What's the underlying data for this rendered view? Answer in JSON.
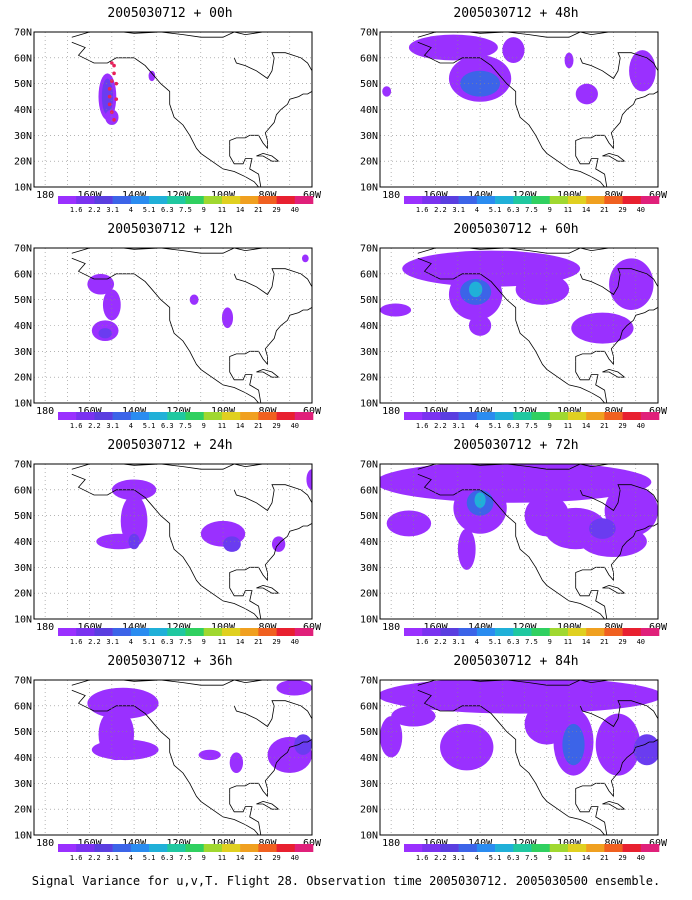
{
  "figure": {
    "footer": "Signal Variance for u,v,T. Flight 28. Observation time 2005030712. 2005030500 ensemble."
  },
  "colorbar": {
    "labels": [
      "1.6",
      "2.2",
      "3.1",
      "4",
      "5.1",
      "6.3",
      "7.5",
      "9",
      "11",
      "14",
      "21",
      "29",
      "40"
    ],
    "colors": [
      "#9a30ff",
      "#7a32f0",
      "#5a3ee0",
      "#3c64e8",
      "#2a8cf0",
      "#20b0d8",
      "#20c8a0",
      "#30d060",
      "#a0d830",
      "#e0d020",
      "#f0a020",
      "#f06020",
      "#e82030",
      "#e0207a"
    ]
  },
  "chart_data": [
    {
      "type": "heatmap",
      "title": "2005030712 + 00h",
      "ylabels": [
        "70N",
        "60N",
        "50N",
        "40N",
        "30N",
        "20N",
        "10N"
      ],
      "xlabels": [
        "180",
        "160W",
        "140W",
        "120W",
        "100W",
        "80W",
        "60W"
      ],
      "lon_range": [
        -185,
        -60
      ],
      "lat_range": [
        10,
        70
      ],
      "grid": true,
      "blobs": [
        {
          "lon": -152,
          "lat": 45,
          "rx": 4,
          "ry": 9,
          "level": 1
        },
        {
          "lon": -152,
          "lat": 45,
          "rx": 2.5,
          "ry": 7,
          "level": 2
        },
        {
          "lon": -150,
          "lat": 37,
          "rx": 3,
          "ry": 3,
          "level": 1
        },
        {
          "lon": -132,
          "lat": 53,
          "rx": 1.5,
          "ry": 2,
          "level": 1
        }
      ],
      "flight_points": [
        {
          "lon": -149,
          "lat": 57
        },
        {
          "lon": -149,
          "lat": 54
        },
        {
          "lon": -150,
          "lat": 51
        },
        {
          "lon": -151,
          "lat": 48
        },
        {
          "lon": -151,
          "lat": 45
        },
        {
          "lon": -151,
          "lat": 42
        },
        {
          "lon": -150,
          "lat": 39
        },
        {
          "lon": -149,
          "lat": 36
        },
        {
          "lon": -150,
          "lat": 58
        },
        {
          "lon": -148,
          "lat": 50
        },
        {
          "lon": -148,
          "lat": 44
        }
      ]
    },
    {
      "type": "heatmap",
      "title": "2005030712 + 48h",
      "ylabels": [
        "70N",
        "60N",
        "50N",
        "40N",
        "30N",
        "20N",
        "10N"
      ],
      "xlabels": [
        "180",
        "160W",
        "140W",
        "120W",
        "100W",
        "80W",
        "60W"
      ],
      "lon_range": [
        -185,
        -60
      ],
      "lat_range": [
        10,
        70
      ],
      "grid": true,
      "blobs": [
        {
          "lon": -152,
          "lat": 64,
          "rx": 20,
          "ry": 5,
          "level": 1
        },
        {
          "lon": -140,
          "lat": 52,
          "rx": 14,
          "ry": 9,
          "level": 1
        },
        {
          "lon": -140,
          "lat": 50,
          "rx": 9,
          "ry": 5,
          "level": 3
        },
        {
          "lon": -125,
          "lat": 63,
          "rx": 5,
          "ry": 5,
          "level": 1
        },
        {
          "lon": -100,
          "lat": 59,
          "rx": 2,
          "ry": 3,
          "level": 1
        },
        {
          "lon": -92,
          "lat": 46,
          "rx": 5,
          "ry": 4,
          "level": 1
        },
        {
          "lon": -67,
          "lat": 55,
          "rx": 6,
          "ry": 8,
          "level": 1
        },
        {
          "lon": -182,
          "lat": 47,
          "rx": 2,
          "ry": 2,
          "level": 1
        }
      ]
    },
    {
      "type": "heatmap",
      "title": "2005030712 + 12h",
      "ylabels": [
        "70N",
        "60N",
        "50N",
        "40N",
        "30N",
        "20N",
        "10N"
      ],
      "xlabels": [
        "180",
        "160W",
        "140W",
        "120W",
        "100W",
        "80W",
        "60W"
      ],
      "lon_range": [
        -185,
        -60
      ],
      "lat_range": [
        10,
        70
      ],
      "grid": true,
      "blobs": [
        {
          "lon": -155,
          "lat": 56,
          "rx": 6,
          "ry": 4,
          "level": 1
        },
        {
          "lon": -150,
          "lat": 48,
          "rx": 4,
          "ry": 6,
          "level": 1
        },
        {
          "lon": -153,
          "lat": 38,
          "rx": 6,
          "ry": 4,
          "level": 1
        },
        {
          "lon": -153,
          "lat": 37,
          "rx": 3,
          "ry": 2,
          "level": 2
        },
        {
          "lon": -113,
          "lat": 50,
          "rx": 2,
          "ry": 2,
          "level": 1
        },
        {
          "lon": -98,
          "lat": 43,
          "rx": 2.5,
          "ry": 4,
          "level": 1
        },
        {
          "lon": -63,
          "lat": 66,
          "rx": 1.5,
          "ry": 1.5,
          "level": 1
        }
      ]
    },
    {
      "type": "heatmap",
      "title": "2005030712 + 60h",
      "ylabels": [
        "70N",
        "60N",
        "50N",
        "40N",
        "30N",
        "20N",
        "10N"
      ],
      "xlabels": [
        "180",
        "160W",
        "140W",
        "120W",
        "100W",
        "80W",
        "60W"
      ],
      "lon_range": [
        -185,
        -60
      ],
      "lat_range": [
        10,
        70
      ],
      "grid": true,
      "blobs": [
        {
          "lon": -135,
          "lat": 62,
          "rx": 40,
          "ry": 7,
          "level": 1
        },
        {
          "lon": -142,
          "lat": 52,
          "rx": 12,
          "ry": 10,
          "level": 1
        },
        {
          "lon": -142,
          "lat": 53,
          "rx": 7,
          "ry": 5,
          "level": 3
        },
        {
          "lon": -142,
          "lat": 54,
          "rx": 3,
          "ry": 3,
          "level": 5
        },
        {
          "lon": -178,
          "lat": 46,
          "rx": 7,
          "ry": 2.5,
          "level": 1
        },
        {
          "lon": -112,
          "lat": 54,
          "rx": 12,
          "ry": 6,
          "level": 1
        },
        {
          "lon": -85,
          "lat": 39,
          "rx": 14,
          "ry": 6,
          "level": 1
        },
        {
          "lon": -72,
          "lat": 56,
          "rx": 10,
          "ry": 10,
          "level": 1
        },
        {
          "lon": -140,
          "lat": 40,
          "rx": 5,
          "ry": 4,
          "level": 1
        }
      ]
    },
    {
      "type": "heatmap",
      "title": "2005030712 + 24h",
      "ylabels": [
        "70N",
        "60N",
        "50N",
        "40N",
        "30N",
        "20N",
        "10N"
      ],
      "xlabels": [
        "180",
        "160W",
        "140W",
        "120W",
        "100W",
        "80W",
        "60W"
      ],
      "lon_range": [
        -185,
        -60
      ],
      "lat_range": [
        10,
        70
      ],
      "grid": true,
      "blobs": [
        {
          "lon": -140,
          "lat": 60,
          "rx": 10,
          "ry": 4,
          "level": 1
        },
        {
          "lon": -140,
          "lat": 48,
          "rx": 6,
          "ry": 10,
          "level": 1
        },
        {
          "lon": -147,
          "lat": 40,
          "rx": 10,
          "ry": 3,
          "level": 1
        },
        {
          "lon": -140,
          "lat": 40,
          "rx": 2.5,
          "ry": 3,
          "level": 2
        },
        {
          "lon": -100,
          "lat": 43,
          "rx": 10,
          "ry": 5,
          "level": 1
        },
        {
          "lon": -96,
          "lat": 39,
          "rx": 4,
          "ry": 3,
          "level": 2
        },
        {
          "lon": -75,
          "lat": 39,
          "rx": 3,
          "ry": 3,
          "level": 1
        },
        {
          "lon": -60,
          "lat": 64,
          "rx": 2.5,
          "ry": 4,
          "level": 1
        }
      ]
    },
    {
      "type": "heatmap",
      "title": "2005030712 + 72h",
      "ylabels": [
        "70N",
        "60N",
        "50N",
        "40N",
        "30N",
        "20N",
        "10N"
      ],
      "xlabels": [
        "180",
        "160W",
        "140W",
        "120W",
        "100W",
        "80W",
        "60W"
      ],
      "lon_range": [
        -185,
        -60
      ],
      "lat_range": [
        10,
        70
      ],
      "grid": true,
      "blobs": [
        {
          "lon": -125,
          "lat": 63,
          "rx": 62,
          "ry": 8,
          "level": 1
        },
        {
          "lon": -140,
          "lat": 53,
          "rx": 12,
          "ry": 10,
          "level": 1
        },
        {
          "lon": -140,
          "lat": 55,
          "rx": 6,
          "ry": 5,
          "level": 3
        },
        {
          "lon": -140,
          "lat": 56,
          "rx": 2.5,
          "ry": 3,
          "level": 5
        },
        {
          "lon": -146,
          "lat": 37,
          "rx": 4,
          "ry": 8,
          "level": 1
        },
        {
          "lon": -172,
          "lat": 47,
          "rx": 10,
          "ry": 5,
          "level": 1
        },
        {
          "lon": -110,
          "lat": 50,
          "rx": 10,
          "ry": 8,
          "level": 1
        },
        {
          "lon": -97,
          "lat": 45,
          "rx": 14,
          "ry": 8,
          "level": 1
        },
        {
          "lon": -80,
          "lat": 40,
          "rx": 15,
          "ry": 6,
          "level": 1
        },
        {
          "lon": -72,
          "lat": 52,
          "rx": 12,
          "ry": 10,
          "level": 1
        },
        {
          "lon": -85,
          "lat": 45,
          "rx": 6,
          "ry": 4,
          "level": 2
        }
      ]
    },
    {
      "type": "heatmap",
      "title": "2005030712 + 36h",
      "ylabels": [
        "70N",
        "60N",
        "50N",
        "40N",
        "30N",
        "20N",
        "10N"
      ],
      "xlabels": [
        "180",
        "160W",
        "140W",
        "120W",
        "100W",
        "80W",
        "60W"
      ],
      "lon_range": [
        -185,
        -60
      ],
      "lat_range": [
        10,
        70
      ],
      "grid": true,
      "blobs": [
        {
          "lon": -145,
          "lat": 61,
          "rx": 16,
          "ry": 6,
          "level": 1
        },
        {
          "lon": -148,
          "lat": 49,
          "rx": 8,
          "ry": 10,
          "level": 1
        },
        {
          "lon": -144,
          "lat": 43,
          "rx": 15,
          "ry": 4,
          "level": 1
        },
        {
          "lon": -106,
          "lat": 41,
          "rx": 5,
          "ry": 2,
          "level": 1
        },
        {
          "lon": -94,
          "lat": 38,
          "rx": 3,
          "ry": 4,
          "level": 1
        },
        {
          "lon": -70,
          "lat": 41,
          "rx": 10,
          "ry": 7,
          "level": 1
        },
        {
          "lon": -64,
          "lat": 45,
          "rx": 4,
          "ry": 4,
          "level": 2
        },
        {
          "lon": -68,
          "lat": 67,
          "rx": 8,
          "ry": 3,
          "level": 1
        }
      ]
    },
    {
      "type": "heatmap",
      "title": "2005030712 + 84h",
      "ylabels": [
        "70N",
        "60N",
        "50N",
        "40N",
        "30N",
        "20N",
        "10N"
      ],
      "xlabels": [
        "180",
        "160W",
        "140W",
        "120W",
        "100W",
        "80W",
        "60W"
      ],
      "lon_range": [
        -185,
        -60
      ],
      "lat_range": [
        10,
        70
      ],
      "grid": true,
      "blobs": [
        {
          "lon": -122,
          "lat": 64,
          "rx": 64,
          "ry": 7,
          "level": 1
        },
        {
          "lon": -180,
          "lat": 48,
          "rx": 5,
          "ry": 8,
          "level": 1
        },
        {
          "lon": -146,
          "lat": 44,
          "rx": 12,
          "ry": 9,
          "level": 1
        },
        {
          "lon": -110,
          "lat": 53,
          "rx": 10,
          "ry": 8,
          "level": 1
        },
        {
          "lon": -98,
          "lat": 46,
          "rx": 9,
          "ry": 13,
          "level": 1
        },
        {
          "lon": -98,
          "lat": 45,
          "rx": 5,
          "ry": 8,
          "level": 3
        },
        {
          "lon": -78,
          "lat": 45,
          "rx": 10,
          "ry": 12,
          "level": 1
        },
        {
          "lon": -65,
          "lat": 43,
          "rx": 6,
          "ry": 6,
          "level": 2
        },
        {
          "lon": -170,
          "lat": 56,
          "rx": 10,
          "ry": 4,
          "level": 1
        }
      ]
    }
  ]
}
